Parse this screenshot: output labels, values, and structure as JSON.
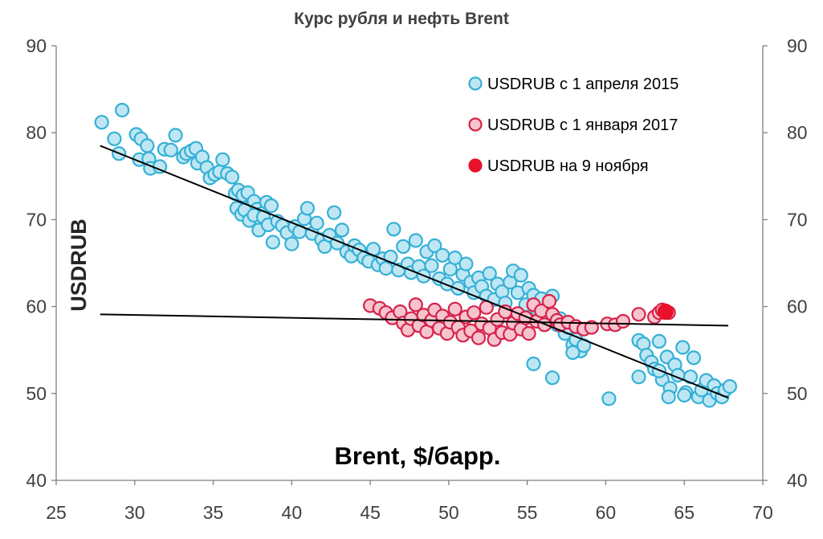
{
  "chart_data": {
    "type": "scatter",
    "title": "Курс рубля и нефть Brent",
    "xlabel": "Brent, $/барр.",
    "ylabel": "USDRUB",
    "xlim": [
      25,
      70
    ],
    "ylim": [
      40,
      90
    ],
    "x_ticks": [
      "25",
      "30",
      "35",
      "40",
      "45",
      "50",
      "55",
      "60",
      "65",
      "70"
    ],
    "y_ticks_left": [
      "40",
      "50",
      "60",
      "70",
      "80",
      "90"
    ],
    "y_ticks_right": [
      "40",
      "50",
      "60",
      "70",
      "80",
      "90"
    ],
    "grid": false,
    "legend_position": "top-right",
    "series": [
      {
        "name": "USDRUB с 1 апреля 2015",
        "color": "#35b0d6",
        "fill": "#bfe7f3",
        "points": [
          [
            27.9,
            81.2
          ],
          [
            28.7,
            79.3
          ],
          [
            29.2,
            82.6
          ],
          [
            29.0,
            77.6
          ],
          [
            30.1,
            79.8
          ],
          [
            30.4,
            79.3
          ],
          [
            30.3,
            76.9
          ],
          [
            30.8,
            78.5
          ],
          [
            30.9,
            77.0
          ],
          [
            31.0,
            75.9
          ],
          [
            31.6,
            76.1
          ],
          [
            31.9,
            78.1
          ],
          [
            32.3,
            78.0
          ],
          [
            32.6,
            79.7
          ],
          [
            33.1,
            77.2
          ],
          [
            33.3,
            77.6
          ],
          [
            33.6,
            77.9
          ],
          [
            33.9,
            78.2
          ],
          [
            34.0,
            76.5
          ],
          [
            34.3,
            77.2
          ],
          [
            34.6,
            76.0
          ],
          [
            34.8,
            74.8
          ],
          [
            35.1,
            75.2
          ],
          [
            35.4,
            75.5
          ],
          [
            35.6,
            76.9
          ],
          [
            35.9,
            75.3
          ],
          [
            36.2,
            74.9
          ],
          [
            36.4,
            73.0
          ],
          [
            36.6,
            73.4
          ],
          [
            36.9,
            72.8
          ],
          [
            37.2,
            73.1
          ],
          [
            37.4,
            71.5
          ],
          [
            37.6,
            72.1
          ],
          [
            37.8,
            71.2
          ],
          [
            38.1,
            70.7
          ],
          [
            38.4,
            72.0
          ],
          [
            38.7,
            71.6
          ],
          [
            36.5,
            71.3
          ],
          [
            36.8,
            70.6
          ],
          [
            37.0,
            71.1
          ],
          [
            37.3,
            69.9
          ],
          [
            37.6,
            70.5
          ],
          [
            37.9,
            68.8
          ],
          [
            38.2,
            70.3
          ],
          [
            38.5,
            69.4
          ],
          [
            38.8,
            67.4
          ],
          [
            39.1,
            69.8
          ],
          [
            39.4,
            69.3
          ],
          [
            39.7,
            68.5
          ],
          [
            40.0,
            67.2
          ],
          [
            40.2,
            69.2
          ],
          [
            40.5,
            68.6
          ],
          [
            40.8,
            70.1
          ],
          [
            41.0,
            71.3
          ],
          [
            41.3,
            68.4
          ],
          [
            41.6,
            69.6
          ],
          [
            41.9,
            67.7
          ],
          [
            42.1,
            66.9
          ],
          [
            42.4,
            68.2
          ],
          [
            42.7,
            70.8
          ],
          [
            42.9,
            67.3
          ],
          [
            43.2,
            68.8
          ],
          [
            43.5,
            66.3
          ],
          [
            43.8,
            65.8
          ],
          [
            44.0,
            67.0
          ],
          [
            44.3,
            66.5
          ],
          [
            44.6,
            65.6
          ],
          [
            44.9,
            65.2
          ],
          [
            45.2,
            66.6
          ],
          [
            45.5,
            64.8
          ],
          [
            45.8,
            65.5
          ],
          [
            46.0,
            64.4
          ],
          [
            46.3,
            65.7
          ],
          [
            46.5,
            68.9
          ],
          [
            46.8,
            64.2
          ],
          [
            47.1,
            66.9
          ],
          [
            47.4,
            64.9
          ],
          [
            47.6,
            63.9
          ],
          [
            47.9,
            67.6
          ],
          [
            48.1,
            64.6
          ],
          [
            48.4,
            63.5
          ],
          [
            48.6,
            66.3
          ],
          [
            48.9,
            64.7
          ],
          [
            49.1,
            67.0
          ],
          [
            49.4,
            63.2
          ],
          [
            49.6,
            65.9
          ],
          [
            49.9,
            62.6
          ],
          [
            50.1,
            64.3
          ],
          [
            50.4,
            65.6
          ],
          [
            50.6,
            62.1
          ],
          [
            50.9,
            63.7
          ],
          [
            51.1,
            64.9
          ],
          [
            51.4,
            62.8
          ],
          [
            51.6,
            61.6
          ],
          [
            51.9,
            63.3
          ],
          [
            52.1,
            62.3
          ],
          [
            52.4,
            61.2
          ],
          [
            52.6,
            63.8
          ],
          [
            52.9,
            60.8
          ],
          [
            53.1,
            62.6
          ],
          [
            53.4,
            61.7
          ],
          [
            53.6,
            60.4
          ],
          [
            53.9,
            62.8
          ],
          [
            54.1,
            64.1
          ],
          [
            54.4,
            61.6
          ],
          [
            54.6,
            63.6
          ],
          [
            54.9,
            60.2
          ],
          [
            55.1,
            62.1
          ],
          [
            55.4,
            61.3
          ],
          [
            55.6,
            59.7
          ],
          [
            55.9,
            60.9
          ],
          [
            56.1,
            59.2
          ],
          [
            56.4,
            58.6
          ],
          [
            56.6,
            61.2
          ],
          [
            56.9,
            57.9
          ],
          [
            57.1,
            58.6
          ],
          [
            57.4,
            56.9
          ],
          [
            57.6,
            57.6
          ],
          [
            57.9,
            55.6
          ],
          [
            58.1,
            56.2
          ],
          [
            58.4,
            54.9
          ],
          [
            58.6,
            55.5
          ],
          [
            57.9,
            54.7
          ],
          [
            56.6,
            51.8
          ],
          [
            55.4,
            53.4
          ],
          [
            60.2,
            49.4
          ],
          [
            62.1,
            56.1
          ],
          [
            62.4,
            55.7
          ],
          [
            62.6,
            54.4
          ],
          [
            62.9,
            53.6
          ],
          [
            63.1,
            52.8
          ],
          [
            63.4,
            56.0
          ],
          [
            63.6,
            51.6
          ],
          [
            63.9,
            54.2
          ],
          [
            64.1,
            50.6
          ],
          [
            64.4,
            53.3
          ],
          [
            64.6,
            52.1
          ],
          [
            64.9,
            55.3
          ],
          [
            65.1,
            50.1
          ],
          [
            65.4,
            51.9
          ],
          [
            65.6,
            54.1
          ],
          [
            65.9,
            49.6
          ],
          [
            66.1,
            50.4
          ],
          [
            66.4,
            51.5
          ],
          [
            66.6,
            49.2
          ],
          [
            66.9,
            50.9
          ],
          [
            67.1,
            50.0
          ],
          [
            67.4,
            49.6
          ],
          [
            67.6,
            50.4
          ],
          [
            67.9,
            50.8
          ],
          [
            62.1,
            51.9
          ],
          [
            63.4,
            52.6
          ],
          [
            64.0,
            49.6
          ],
          [
            65.0,
            49.8
          ]
        ]
      },
      {
        "name": "USDRUB с 1 января 2017",
        "color": "#d6234a",
        "fill": "#f6c4cf",
        "points": [
          [
            45.0,
            60.1
          ],
          [
            45.6,
            59.8
          ],
          [
            46.0,
            59.3
          ],
          [
            46.4,
            58.7
          ],
          [
            46.9,
            59.4
          ],
          [
            47.1,
            58.1
          ],
          [
            47.4,
            57.3
          ],
          [
            47.6,
            58.6
          ],
          [
            47.9,
            60.2
          ],
          [
            48.1,
            57.8
          ],
          [
            48.4,
            59.0
          ],
          [
            48.6,
            57.1
          ],
          [
            48.9,
            58.4
          ],
          [
            49.1,
            59.6
          ],
          [
            49.4,
            57.5
          ],
          [
            49.6,
            58.9
          ],
          [
            49.9,
            56.9
          ],
          [
            50.1,
            58.2
          ],
          [
            50.4,
            59.7
          ],
          [
            50.6,
            57.6
          ],
          [
            50.9,
            56.7
          ],
          [
            51.1,
            58.8
          ],
          [
            51.4,
            57.2
          ],
          [
            51.6,
            59.3
          ],
          [
            51.9,
            56.4
          ],
          [
            52.1,
            58.0
          ],
          [
            52.4,
            59.9
          ],
          [
            52.6,
            57.5
          ],
          [
            52.9,
            56.2
          ],
          [
            53.1,
            58.5
          ],
          [
            53.4,
            57.0
          ],
          [
            53.6,
            59.4
          ],
          [
            53.9,
            56.8
          ],
          [
            54.1,
            58.1
          ],
          [
            54.4,
            59.2
          ],
          [
            54.6,
            57.4
          ],
          [
            54.9,
            58.7
          ],
          [
            55.1,
            56.9
          ],
          [
            55.4,
            60.2
          ],
          [
            55.6,
            58.3
          ],
          [
            55.9,
            59.5
          ],
          [
            56.1,
            57.9
          ],
          [
            56.4,
            60.6
          ],
          [
            56.6,
            59.1
          ],
          [
            56.9,
            58.4
          ],
          [
            57.1,
            57.9
          ],
          [
            57.6,
            58.2
          ],
          [
            58.1,
            57.7
          ],
          [
            58.6,
            57.4
          ],
          [
            59.1,
            57.6
          ],
          [
            60.1,
            58.0
          ],
          [
            60.6,
            57.9
          ],
          [
            61.1,
            58.3
          ],
          [
            62.1,
            59.1
          ],
          [
            63.1,
            58.8
          ],
          [
            63.4,
            59.3
          ],
          [
            63.6,
            59.6
          ],
          [
            64.0,
            59.3
          ]
        ]
      },
      {
        "name": "USDRUB на 9 ноября",
        "color": "#e8112a",
        "fill": "#e8112a",
        "points": [
          [
            63.8,
            59.4
          ]
        ]
      }
    ],
    "trend_lines": [
      {
        "from": [
          27.8,
          78.5
        ],
        "to": [
          67.8,
          49.5
        ],
        "color": "#000000"
      },
      {
        "from": [
          27.8,
          59.1
        ],
        "to": [
          67.8,
          57.8
        ],
        "color": "#000000"
      }
    ]
  }
}
